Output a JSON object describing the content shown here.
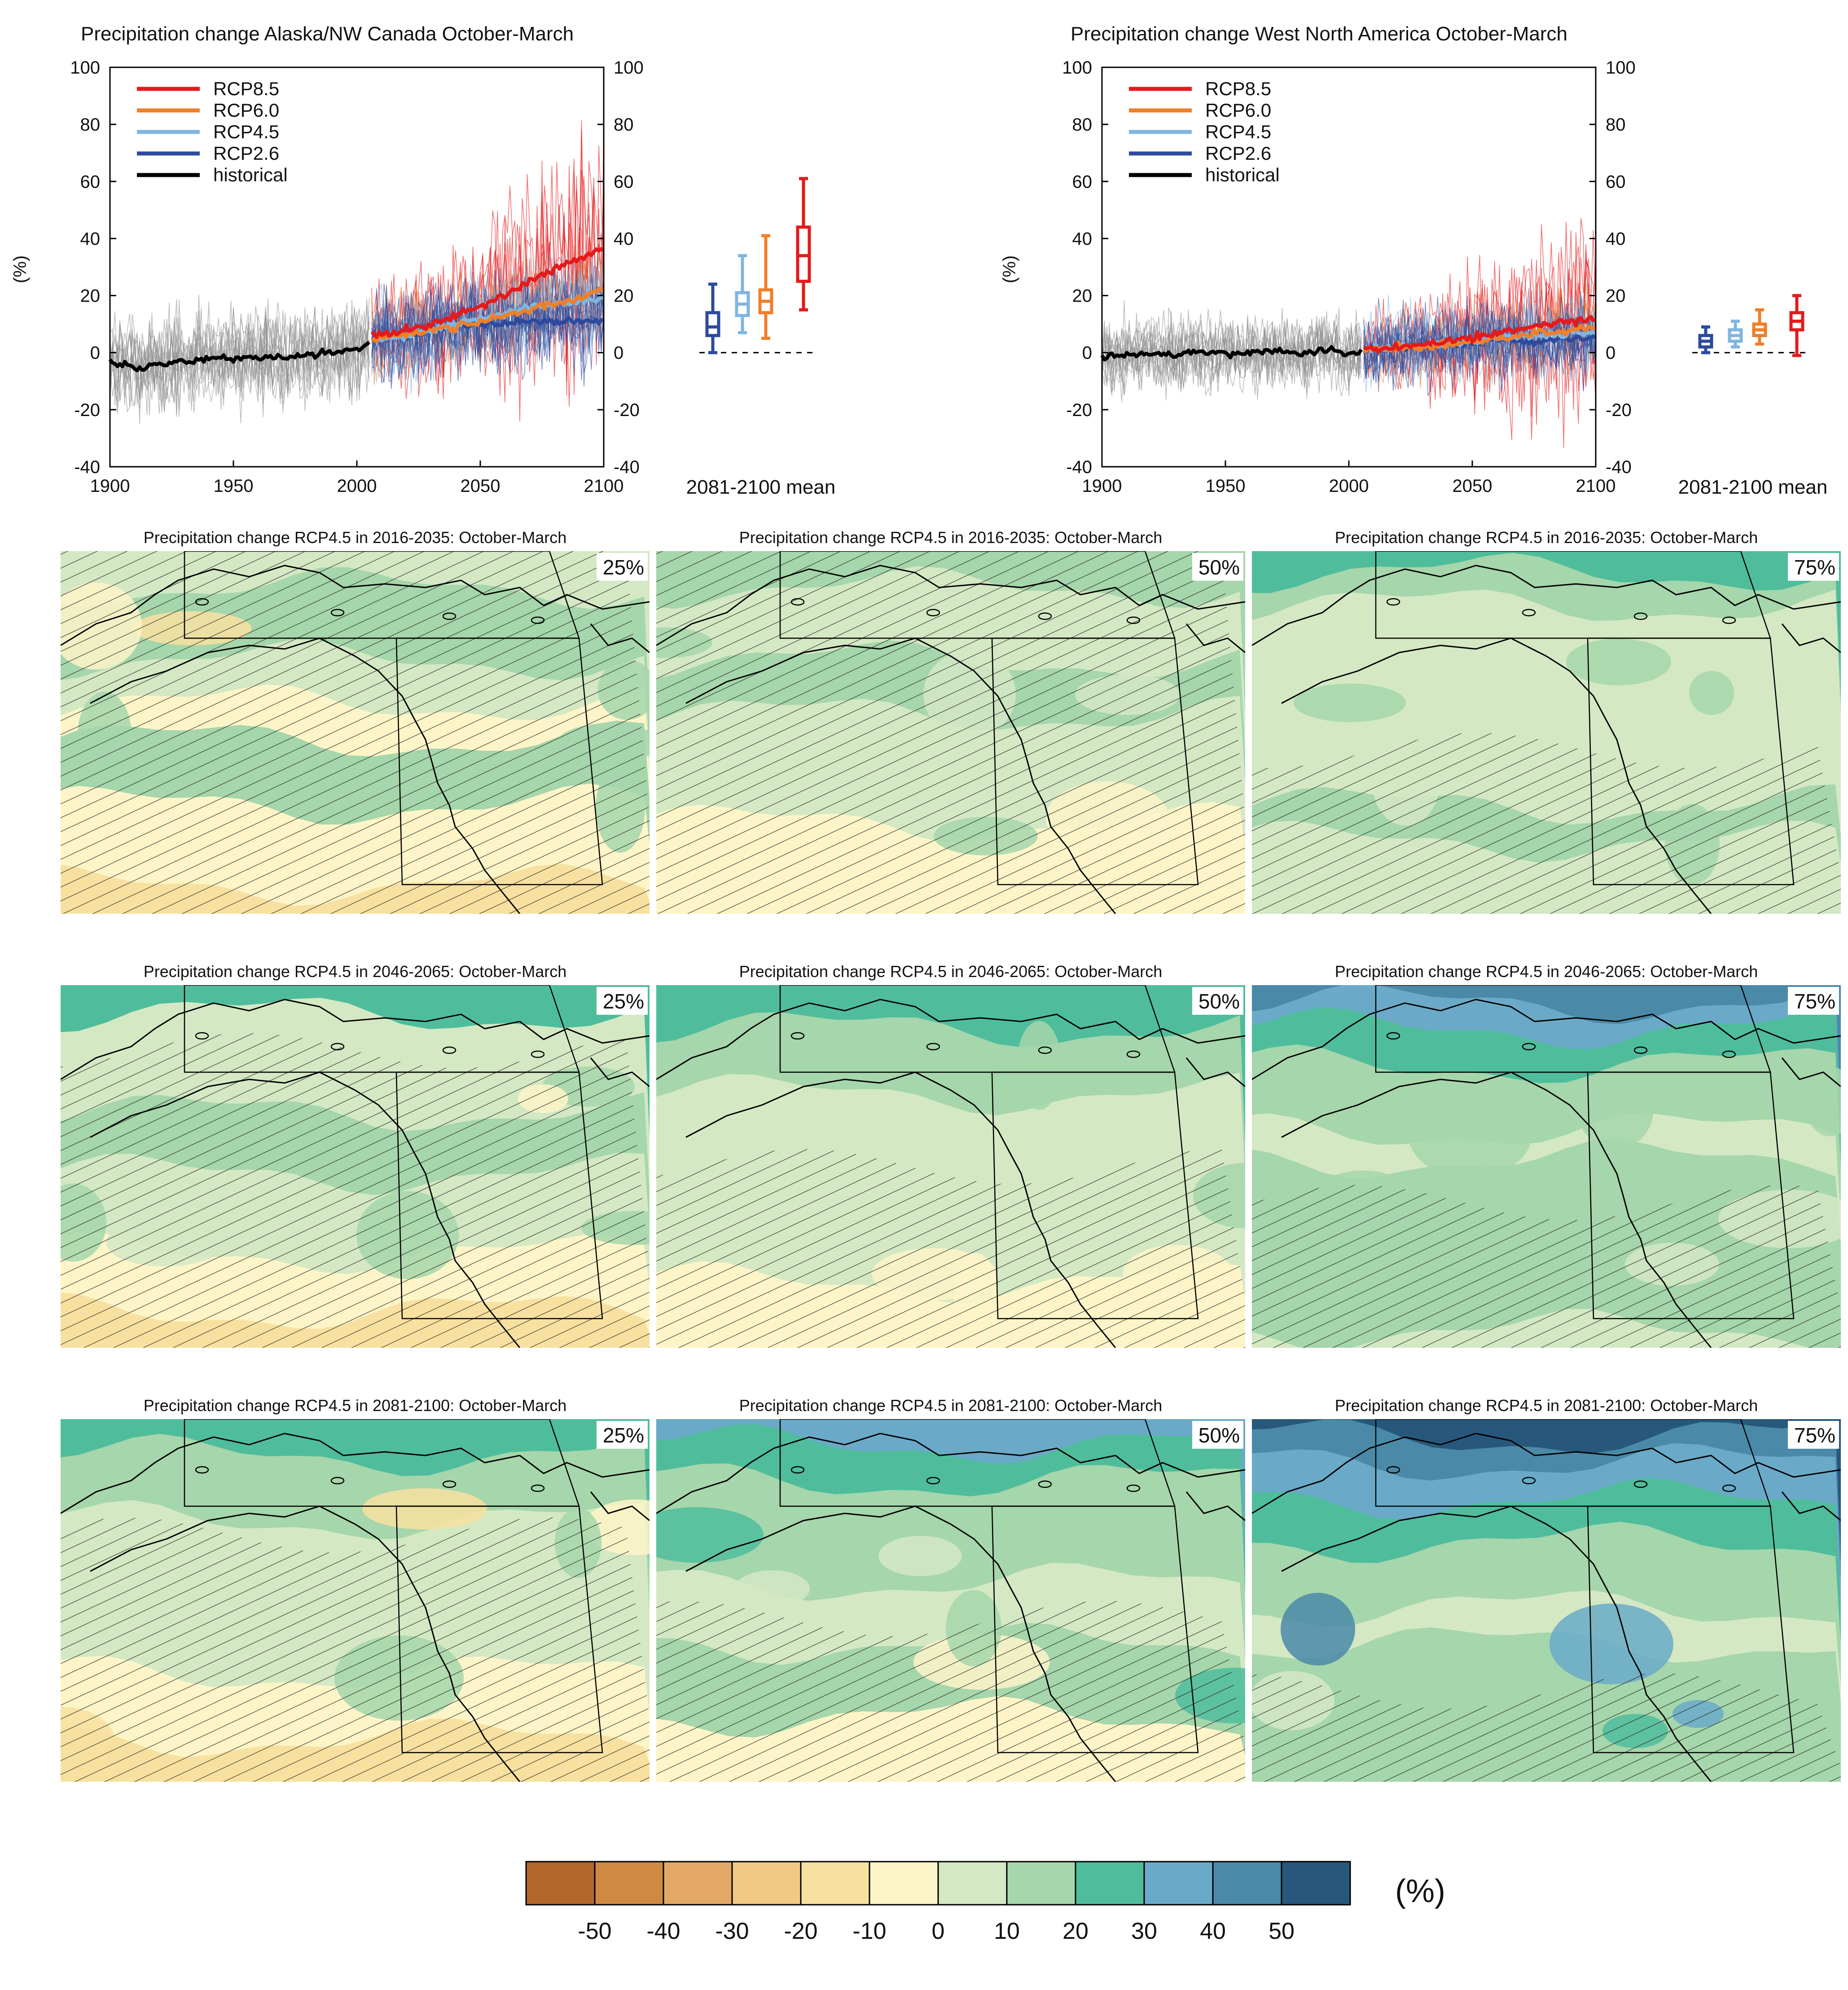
{
  "colors": {
    "rcp85": "#e41a1c",
    "rcp60": "#f07f2a",
    "rcp45": "#7fb6e0",
    "rcp26": "#2c4a9e",
    "historical": "#000000",
    "models": "#8c8c8c"
  },
  "chart_data": [
    {
      "type": "line",
      "title": "Precipitation change Alaska/NW Canada October-March",
      "ylabel": "(%)",
      "xlim": [
        1900,
        2100
      ],
      "ylim": [
        -40,
        100
      ],
      "x_ticks": [
        1900,
        1950,
        2000,
        2050,
        2100
      ],
      "y_ticks": [
        -40,
        -20,
        0,
        20,
        40,
        60,
        80,
        100
      ],
      "legend": "top-left",
      "grid": false,
      "series": [
        {
          "name": "RCP8.5",
          "x": [
            2006,
            2020,
            2030,
            2040,
            2050,
            2060,
            2070,
            2080,
            2090,
            2100
          ],
          "values": [
            6,
            8,
            10,
            13,
            16,
            20,
            25,
            29,
            33,
            37
          ]
        },
        {
          "name": "RCP6.0",
          "x": [
            2006,
            2020,
            2030,
            2040,
            2050,
            2060,
            2070,
            2080,
            2090,
            2100
          ],
          "values": [
            5,
            6,
            8,
            9,
            11,
            13,
            15,
            17,
            19,
            22
          ]
        },
        {
          "name": "RCP4.5",
          "x": [
            2006,
            2020,
            2030,
            2040,
            2050,
            2060,
            2070,
            2080,
            2090,
            2100
          ],
          "values": [
            5,
            6,
            8,
            10,
            12,
            14,
            16,
            17,
            18,
            19
          ]
        },
        {
          "name": "RCP2.6",
          "x": [
            2006,
            2020,
            2030,
            2040,
            2050,
            2060,
            2070,
            2080,
            2090,
            2100
          ],
          "values": [
            5,
            6,
            7,
            9,
            10,
            10,
            11,
            11,
            11,
            11
          ]
        },
        {
          "name": "historical",
          "x": [
            1900,
            1910,
            1920,
            1930,
            1940,
            1950,
            1960,
            1970,
            1980,
            1990,
            2000,
            2005
          ],
          "values": [
            -3,
            -5,
            -4,
            -3,
            -2,
            -2,
            -1,
            -2,
            -1,
            0,
            1,
            3
          ]
        }
      ],
      "box_title": "2081-2100 mean",
      "boxes": [
        {
          "name": "RCP2.6",
          "min": 0,
          "q1": 6,
          "median": 9,
          "q3": 14,
          "max": 24
        },
        {
          "name": "RCP4.5",
          "min": 7,
          "q1": 13,
          "median": 17,
          "q3": 21,
          "max": 34
        },
        {
          "name": "RCP6.0",
          "min": 5,
          "q1": 14,
          "median": 18,
          "q3": 22,
          "max": 41
        },
        {
          "name": "RCP8.5",
          "min": 15,
          "q1": 25,
          "median": 34,
          "q3": 44,
          "max": 61
        }
      ]
    },
    {
      "type": "line",
      "title": "Precipitation change West North America October-March",
      "ylabel": "(%)",
      "xlim": [
        1900,
        2100
      ],
      "ylim": [
        -40,
        100
      ],
      "x_ticks": [
        1900,
        1950,
        2000,
        2050,
        2100
      ],
      "y_ticks": [
        -40,
        -20,
        0,
        20,
        40,
        60,
        80,
        100
      ],
      "legend": "top-left",
      "grid": false,
      "series": [
        {
          "name": "RCP8.5",
          "x": [
            2006,
            2020,
            2030,
            2040,
            2050,
            2060,
            2070,
            2080,
            2090,
            2100
          ],
          "values": [
            1,
            2,
            3,
            4,
            5,
            7,
            8,
            10,
            11,
            12
          ]
        },
        {
          "name": "RCP6.0",
          "x": [
            2006,
            2020,
            2030,
            2040,
            2050,
            2060,
            2070,
            2080,
            2090,
            2100
          ],
          "values": [
            1,
            2,
            2,
            3,
            4,
            5,
            6,
            7,
            8,
            9
          ]
        },
        {
          "name": "RCP4.5",
          "x": [
            2006,
            2020,
            2030,
            2040,
            2050,
            2060,
            2070,
            2080,
            2090,
            2100
          ],
          "values": [
            1,
            2,
            3,
            3,
            4,
            5,
            6,
            6,
            7,
            7
          ]
        },
        {
          "name": "RCP2.6",
          "x": [
            2006,
            2020,
            2030,
            2040,
            2050,
            2060,
            2070,
            2080,
            2090,
            2100
          ],
          "values": [
            1,
            2,
            2,
            3,
            3,
            4,
            4,
            4,
            5,
            5
          ]
        },
        {
          "name": "historical",
          "x": [
            1900,
            1910,
            1920,
            1930,
            1940,
            1950,
            1960,
            1970,
            1980,
            1990,
            2000,
            2005
          ],
          "values": [
            -1,
            -1,
            0,
            -1,
            0,
            0,
            0,
            1,
            0,
            1,
            0,
            1
          ]
        }
      ],
      "box_title": "2081-2100 mean",
      "boxes": [
        {
          "name": "RCP2.6",
          "min": 0,
          "q1": 2,
          "median": 4,
          "q3": 6,
          "max": 9
        },
        {
          "name": "RCP4.5",
          "min": 2,
          "q1": 4,
          "median": 6,
          "q3": 8,
          "max": 11
        },
        {
          "name": "RCP6.0",
          "min": 3,
          "q1": 6,
          "median": 8,
          "q3": 10,
          "max": 15
        },
        {
          "name": "RCP8.5",
          "min": -1,
          "q1": 8,
          "median": 11,
          "q3": 14,
          "max": 20
        }
      ]
    },
    {
      "type": "heatmap",
      "maps": [
        {
          "title": "Precipitation change RCP4.5 in 2016-2035: October-March",
          "percentile": "25%"
        },
        {
          "title": "Precipitation change RCP4.5 in 2016-2035: October-March",
          "percentile": "50%"
        },
        {
          "title": "Precipitation change RCP4.5 in 2016-2035: October-March",
          "percentile": "75%"
        },
        {
          "title": "Precipitation change RCP4.5 in 2046-2065: October-March",
          "percentile": "25%"
        },
        {
          "title": "Precipitation change RCP4.5 in 2046-2065: October-March",
          "percentile": "50%"
        },
        {
          "title": "Precipitation change RCP4.5 in 2046-2065: October-March",
          "percentile": "75%"
        },
        {
          "title": "Precipitation change RCP4.5 in 2081-2100: October-March",
          "percentile": "25%"
        },
        {
          "title": "Precipitation change RCP4.5 in 2081-2100: October-March",
          "percentile": "50%"
        },
        {
          "title": "Precipitation change RCP4.5 in 2081-2100: October-March",
          "percentile": "75%"
        }
      ],
      "colorbar": {
        "unit": "(%)",
        "ticks": [
          "-50",
          "-40",
          "-30",
          "-20",
          "-10",
          "0",
          "10",
          "20",
          "30",
          "40",
          "50"
        ],
        "colors": [
          "#b5672a",
          "#cf8943",
          "#e3a866",
          "#f3c884",
          "#f8e1a0",
          "#fdf5c8",
          "#d4e8c4",
          "#a6d6ab",
          "#4fbd9c",
          "#6aaac8",
          "#4a8aa8",
          "#27587c"
        ]
      }
    }
  ]
}
